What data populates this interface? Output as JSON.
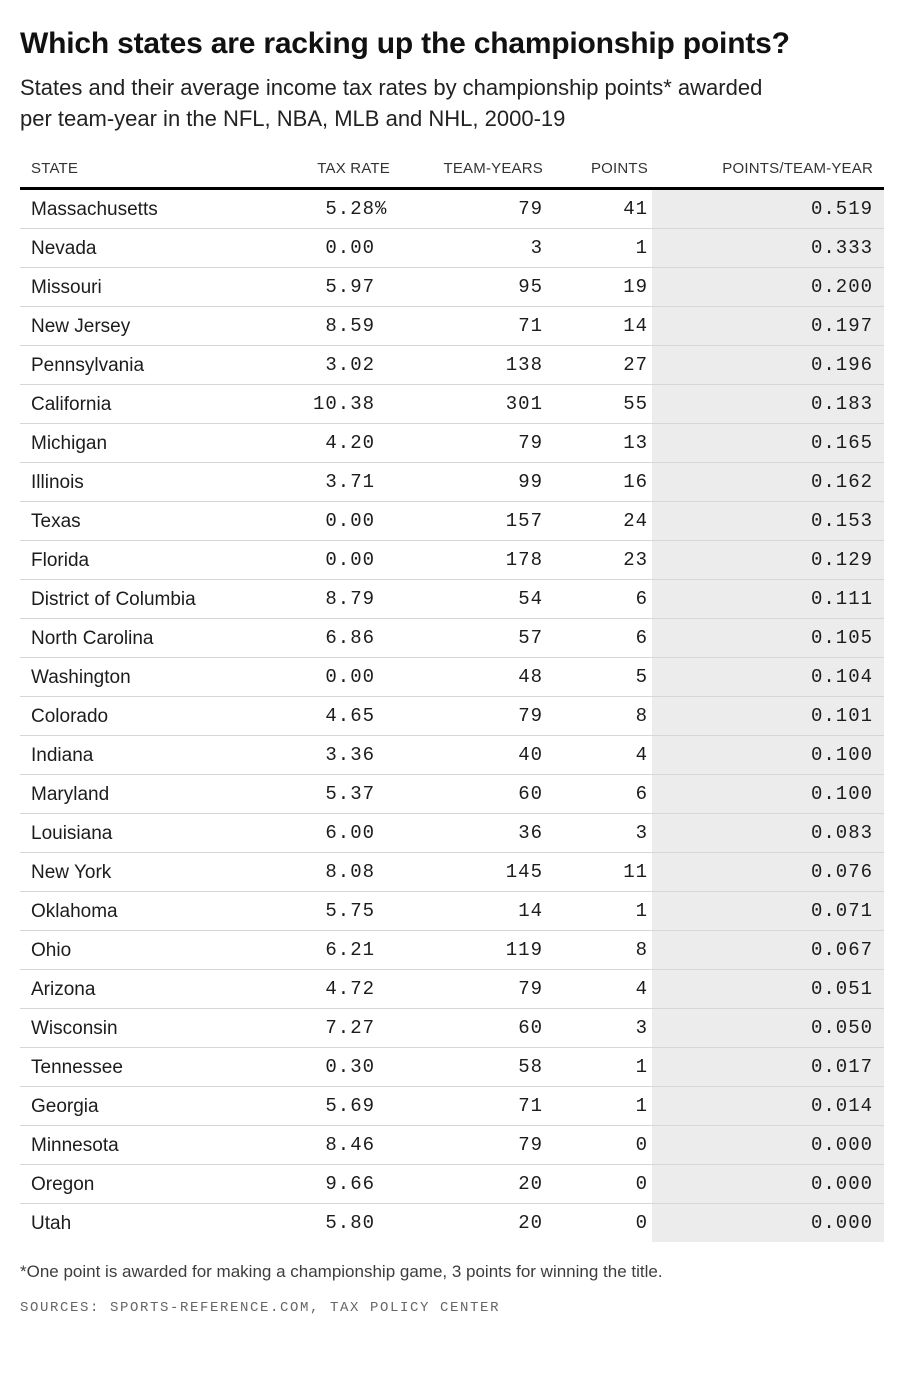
{
  "chart_data": {
    "type": "table",
    "title": "Which states are racking up the championship points?",
    "subtitle": "States and their average income tax rates by championship points* awarded per team-year in the NFL, NBA, MLB and NHL, 2000-19",
    "columns": [
      "STATE",
      "TAX RATE",
      "TEAM-YEARS",
      "POINTS",
      "POINTS/TEAM-YEAR"
    ],
    "rows": [
      {
        "state": "Massachusetts",
        "tax_rate": "5.28",
        "tax_rate_unit": "%",
        "team_years": "79",
        "points": "41",
        "points_per_team_year": "0.519"
      },
      {
        "state": "Nevada",
        "tax_rate": "0.00",
        "tax_rate_unit": "",
        "team_years": "3",
        "points": "1",
        "points_per_team_year": "0.333"
      },
      {
        "state": "Missouri",
        "tax_rate": "5.97",
        "tax_rate_unit": "",
        "team_years": "95",
        "points": "19",
        "points_per_team_year": "0.200"
      },
      {
        "state": "New Jersey",
        "tax_rate": "8.59",
        "tax_rate_unit": "",
        "team_years": "71",
        "points": "14",
        "points_per_team_year": "0.197"
      },
      {
        "state": "Pennsylvania",
        "tax_rate": "3.02",
        "tax_rate_unit": "",
        "team_years": "138",
        "points": "27",
        "points_per_team_year": "0.196"
      },
      {
        "state": "California",
        "tax_rate": "10.38",
        "tax_rate_unit": "",
        "team_years": "301",
        "points": "55",
        "points_per_team_year": "0.183"
      },
      {
        "state": "Michigan",
        "tax_rate": "4.20",
        "tax_rate_unit": "",
        "team_years": "79",
        "points": "13",
        "points_per_team_year": "0.165"
      },
      {
        "state": "Illinois",
        "tax_rate": "3.71",
        "tax_rate_unit": "",
        "team_years": "99",
        "points": "16",
        "points_per_team_year": "0.162"
      },
      {
        "state": "Texas",
        "tax_rate": "0.00",
        "tax_rate_unit": "",
        "team_years": "157",
        "points": "24",
        "points_per_team_year": "0.153"
      },
      {
        "state": "Florida",
        "tax_rate": "0.00",
        "tax_rate_unit": "",
        "team_years": "178",
        "points": "23",
        "points_per_team_year": "0.129"
      },
      {
        "state": "District of Columbia",
        "tax_rate": "8.79",
        "tax_rate_unit": "",
        "team_years": "54",
        "points": "6",
        "points_per_team_year": "0.111"
      },
      {
        "state": "North Carolina",
        "tax_rate": "6.86",
        "tax_rate_unit": "",
        "team_years": "57",
        "points": "6",
        "points_per_team_year": "0.105"
      },
      {
        "state": "Washington",
        "tax_rate": "0.00",
        "tax_rate_unit": "",
        "team_years": "48",
        "points": "5",
        "points_per_team_year": "0.104"
      },
      {
        "state": "Colorado",
        "tax_rate": "4.65",
        "tax_rate_unit": "",
        "team_years": "79",
        "points": "8",
        "points_per_team_year": "0.101"
      },
      {
        "state": "Indiana",
        "tax_rate": "3.36",
        "tax_rate_unit": "",
        "team_years": "40",
        "points": "4",
        "points_per_team_year": "0.100"
      },
      {
        "state": "Maryland",
        "tax_rate": "5.37",
        "tax_rate_unit": "",
        "team_years": "60",
        "points": "6",
        "points_per_team_year": "0.100"
      },
      {
        "state": "Louisiana",
        "tax_rate": "6.00",
        "tax_rate_unit": "",
        "team_years": "36",
        "points": "3",
        "points_per_team_year": "0.083"
      },
      {
        "state": "New York",
        "tax_rate": "8.08",
        "tax_rate_unit": "",
        "team_years": "145",
        "points": "11",
        "points_per_team_year": "0.076"
      },
      {
        "state": "Oklahoma",
        "tax_rate": "5.75",
        "tax_rate_unit": "",
        "team_years": "14",
        "points": "1",
        "points_per_team_year": "0.071"
      },
      {
        "state": "Ohio",
        "tax_rate": "6.21",
        "tax_rate_unit": "",
        "team_years": "119",
        "points": "8",
        "points_per_team_year": "0.067"
      },
      {
        "state": "Arizona",
        "tax_rate": "4.72",
        "tax_rate_unit": "",
        "team_years": "79",
        "points": "4",
        "points_per_team_year": "0.051"
      },
      {
        "state": "Wisconsin",
        "tax_rate": "7.27",
        "tax_rate_unit": "",
        "team_years": "60",
        "points": "3",
        "points_per_team_year": "0.050"
      },
      {
        "state": "Tennessee",
        "tax_rate": "0.30",
        "tax_rate_unit": "",
        "team_years": "58",
        "points": "1",
        "points_per_team_year": "0.017"
      },
      {
        "state": "Georgia",
        "tax_rate": "5.69",
        "tax_rate_unit": "",
        "team_years": "71",
        "points": "1",
        "points_per_team_year": "0.014"
      },
      {
        "state": "Minnesota",
        "tax_rate": "8.46",
        "tax_rate_unit": "",
        "team_years": "79",
        "points": "0",
        "points_per_team_year": "0.000"
      },
      {
        "state": "Oregon",
        "tax_rate": "9.66",
        "tax_rate_unit": "",
        "team_years": "20",
        "points": "0",
        "points_per_team_year": "0.000"
      },
      {
        "state": "Utah",
        "tax_rate": "5.80",
        "tax_rate_unit": "",
        "team_years": "20",
        "points": "0",
        "points_per_team_year": "0.000"
      }
    ],
    "footnote": "*One point is awarded for making a championship game, 3 points for winning the title.",
    "sources": "SOURCES: SPORTS-REFERENCE.COM, TAX POLICY CENTER",
    "layout_hints": {
      "shaded_last_column": true,
      "header_rule": "thick-black",
      "row_dividers": true
    }
  },
  "colors": {
    "shaded_column": "#ececec",
    "row_divider": "#d7d7d7",
    "header_rule": "#000000",
    "body_text": "#1c1c1c",
    "sources_text": "#666666"
  }
}
